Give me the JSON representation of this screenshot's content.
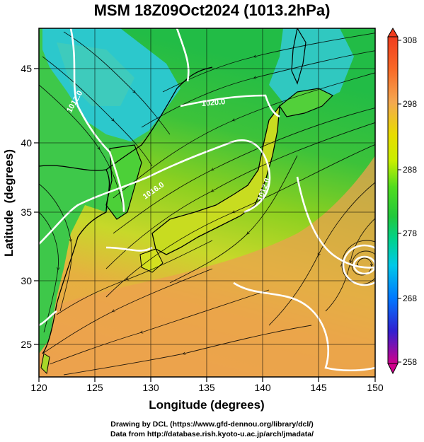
{
  "title": "MSM 18Z09Oct2024 (1013.2hPa)",
  "map": {
    "x_axis": {
      "label": "Longitude (degrees)",
      "range": [
        120,
        150
      ],
      "ticks": [
        120,
        125,
        130,
        135,
        140,
        145,
        150
      ],
      "tick_labels": [
        "120",
        "125",
        "130",
        "135",
        "140",
        "145",
        "150"
      ]
    },
    "y_axis": {
      "label": "Latitude  (degrees)",
      "range": [
        22.5,
        47.5
      ],
      "ticks": [
        25,
        30,
        35,
        40,
        45
      ],
      "tick_labels": [
        "25",
        "30",
        "35",
        "40",
        "45"
      ]
    },
    "colorbar": {
      "range": [
        258,
        308
      ],
      "labels": [
        "308",
        "298",
        "288",
        "278",
        "268",
        "258"
      ],
      "colors": [
        "#d0008c",
        "#3020d0",
        "#0078ff",
        "#00c8e8",
        "#00d28c",
        "#22c83c",
        "#50dc1e",
        "#c8ee00",
        "#f0dc00",
        "#f4a850",
        "#f86a28",
        "#f03c1e"
      ]
    },
    "contour_labels": [
      "1012.0",
      "1016.0",
      "1020.0",
      "1012.0"
    ],
    "colors": {
      "sea_warm": "#eca24e",
      "sea_mid": "#9cd21e",
      "sea_cool": "#28be40",
      "cold_land": "#28c8dc",
      "coastline": "#000000",
      "isobar": "#ffffff",
      "streamline": "#000000"
    }
  },
  "footer": {
    "line1": "Drawing by DCL (https://www.gfd-dennou.org/library/dcl/)",
    "line2": "Data from http://database.rish.kyoto-u.ac.jp/arch/jmadata/"
  }
}
